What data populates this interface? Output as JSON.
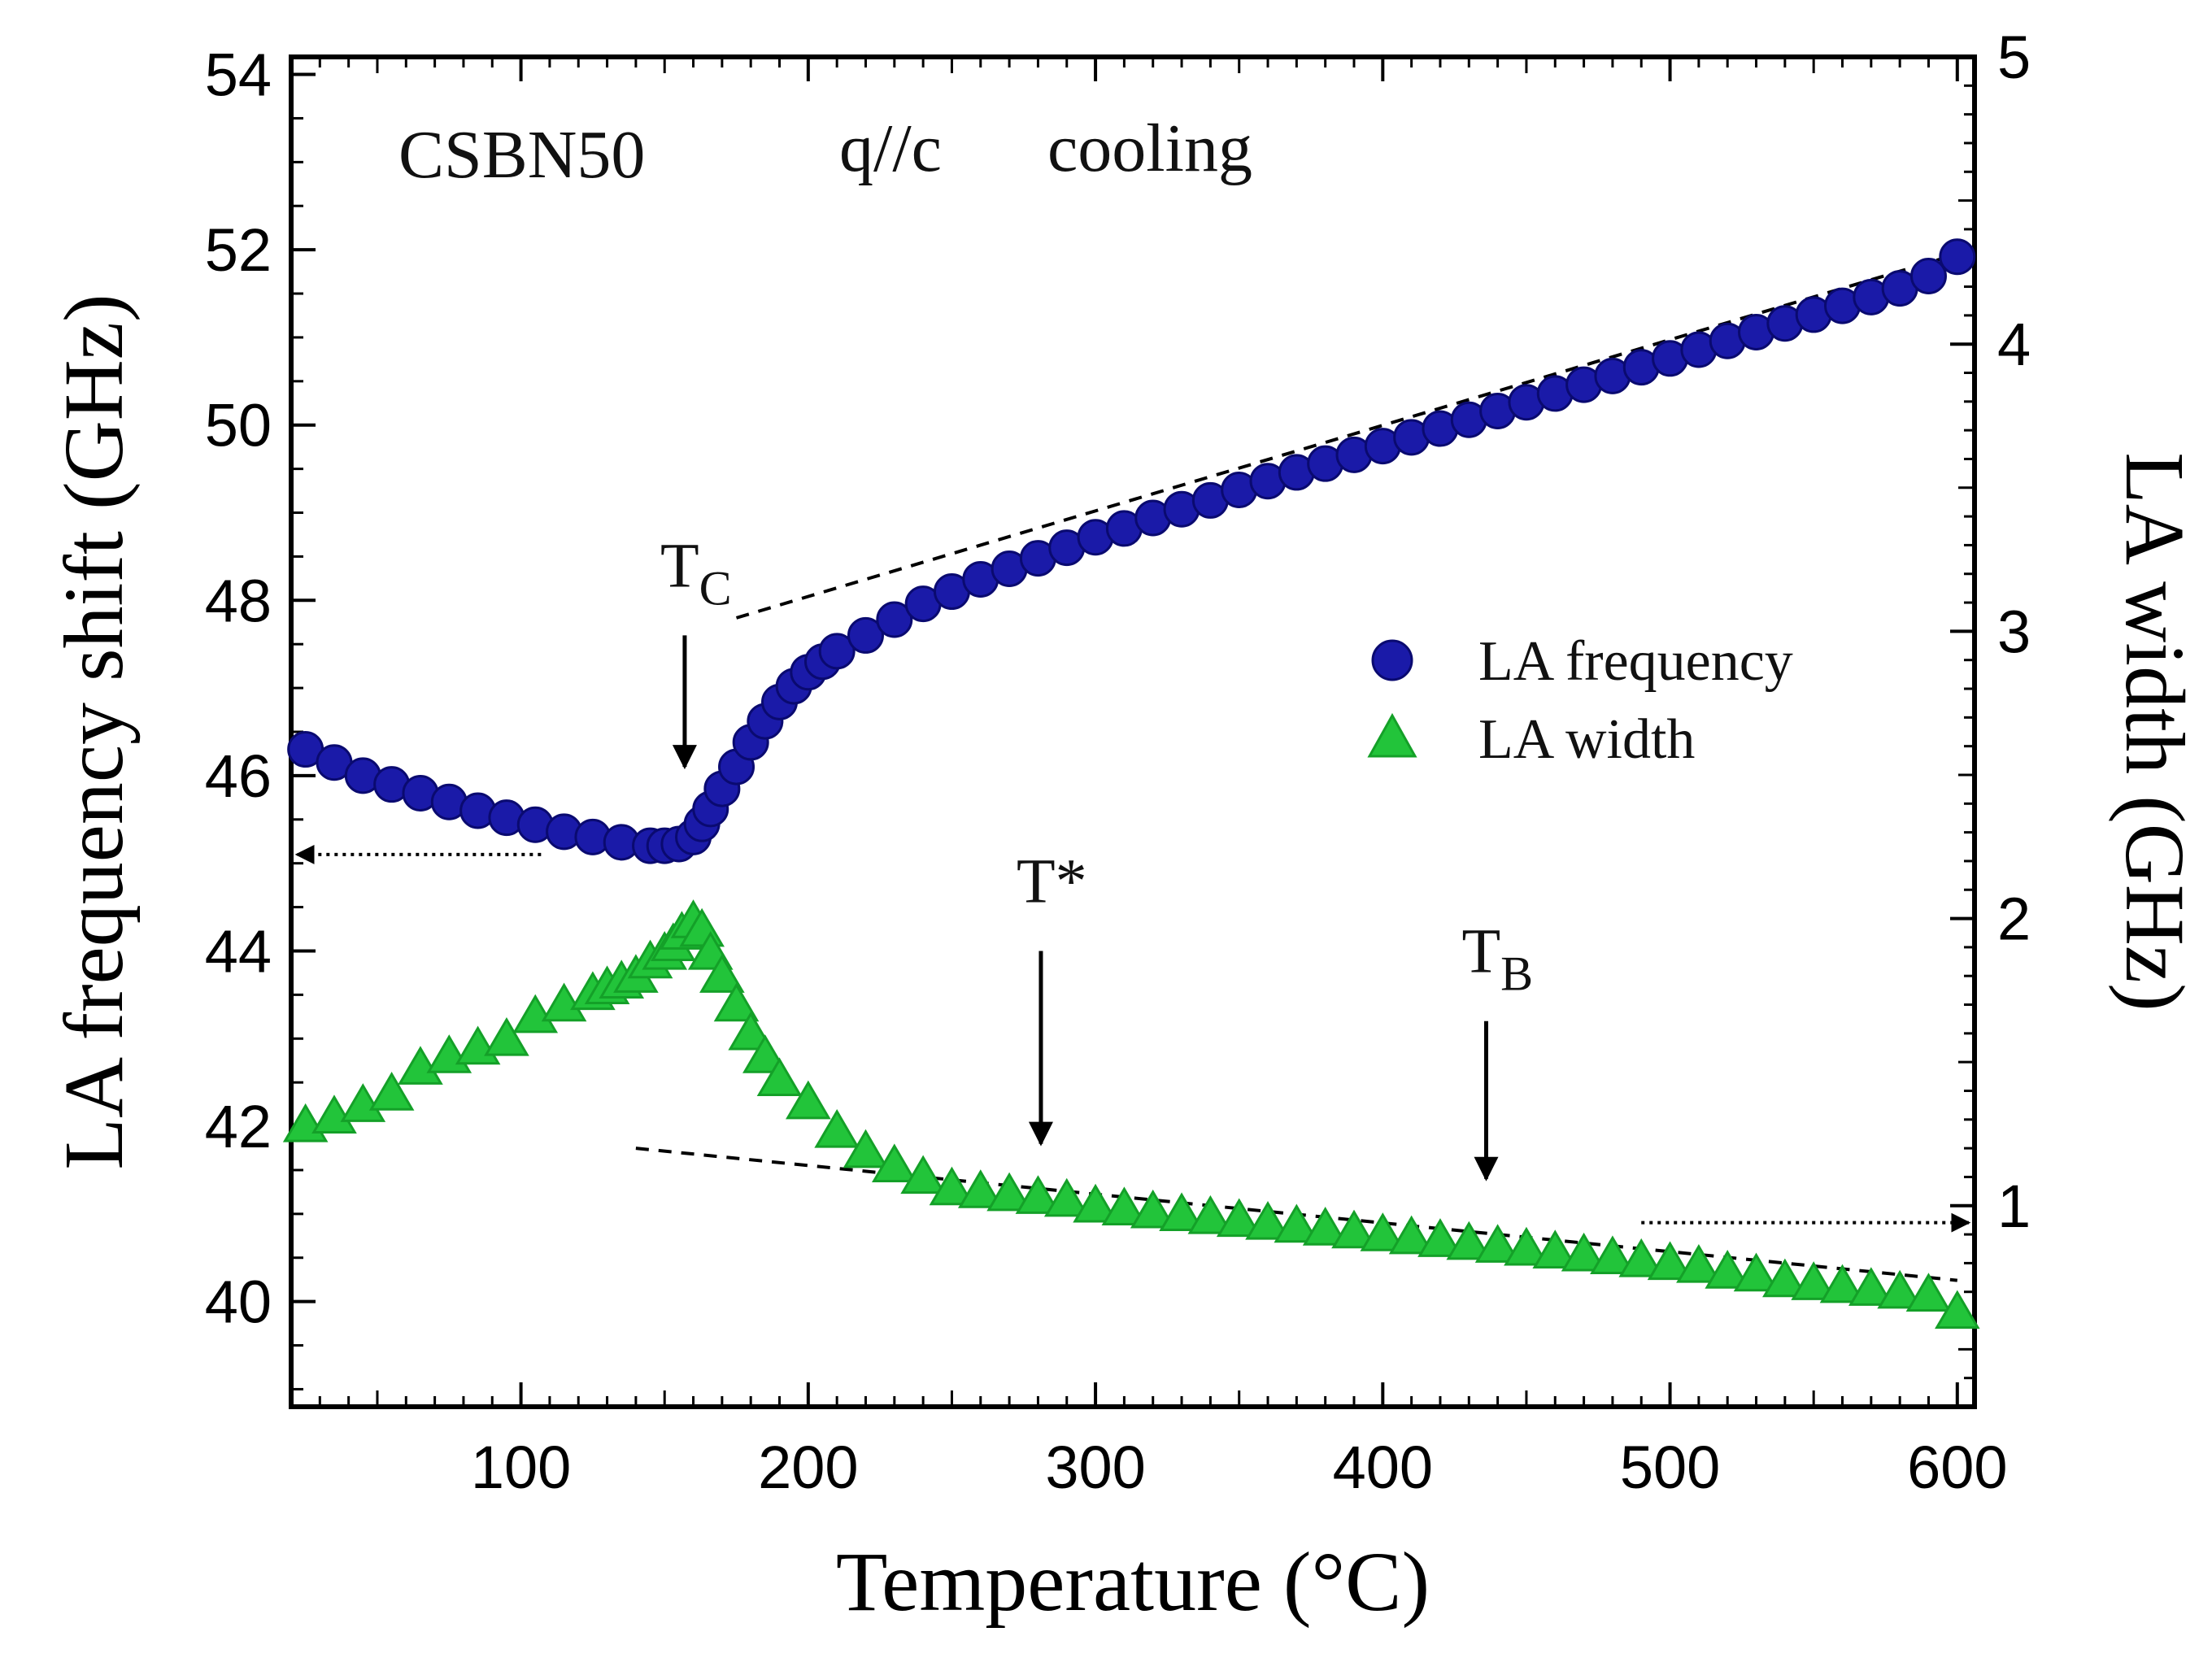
{
  "chart_data": {
    "type": "scatter",
    "header": {
      "sample": "CSBN50",
      "geometry": "q//c",
      "process": "cooling"
    },
    "xlabel": "Temperature (°C)",
    "ylabel_left": "LA frequency shift (GHz)",
    "ylabel_right": "LA width (GHz)",
    "xlim": [
      20,
      606
    ],
    "ylim_left": [
      38.8,
      54.2
    ],
    "ylim_right": [
      0.3,
      5.0
    ],
    "x_ticks": [
      100,
      200,
      300,
      400,
      500,
      600
    ],
    "y_left_ticks": [
      40,
      42,
      44,
      46,
      48,
      50,
      52,
      54
    ],
    "y_right_ticks": [
      1,
      2,
      3,
      4,
      5
    ],
    "grid": false,
    "legend": {
      "placement": "right-middle",
      "entries": [
        "LA frequency",
        "LA width"
      ]
    },
    "colors": {
      "frequency": "#1a1aa8",
      "width": "#22c43a",
      "frequency_edge": "#0a0a70",
      "width_edge": "#14a028"
    },
    "series": [
      {
        "name": "LA frequency",
        "axis": "left",
        "marker": "circle",
        "x": [
          25,
          35,
          45,
          55,
          65,
          75,
          85,
          95,
          105,
          115,
          125,
          135,
          145,
          150,
          155,
          160,
          163,
          166,
          170,
          175,
          180,
          185,
          190,
          195,
          200,
          205,
          210,
          220,
          230,
          240,
          250,
          260,
          270,
          280,
          290,
          300,
          310,
          320,
          330,
          340,
          350,
          360,
          370,
          380,
          390,
          400,
          410,
          420,
          430,
          440,
          450,
          460,
          470,
          480,
          490,
          500,
          510,
          520,
          530,
          540,
          550,
          560,
          570,
          580,
          590,
          600
        ],
        "y": [
          46.3,
          46.15,
          46.0,
          45.9,
          45.8,
          45.7,
          45.6,
          45.52,
          45.44,
          45.36,
          45.3,
          45.24,
          45.2,
          45.2,
          45.22,
          45.3,
          45.45,
          45.62,
          45.85,
          46.1,
          46.38,
          46.62,
          46.84,
          47.02,
          47.18,
          47.3,
          47.42,
          47.6,
          47.78,
          47.96,
          48.1,
          48.24,
          48.36,
          48.48,
          48.6,
          48.72,
          48.82,
          48.94,
          49.04,
          49.14,
          49.26,
          49.36,
          49.46,
          49.56,
          49.66,
          49.76,
          49.86,
          49.96,
          50.06,
          50.16,
          50.26,
          50.36,
          50.46,
          50.56,
          50.66,
          50.76,
          50.86,
          50.96,
          51.06,
          51.16,
          51.26,
          51.36,
          51.46,
          51.56,
          51.7,
          51.92
        ]
      },
      {
        "name": "LA width",
        "axis": "right",
        "marker": "triangle",
        "x": [
          25,
          35,
          45,
          55,
          65,
          75,
          85,
          95,
          105,
          115,
          125,
          130,
          135,
          140,
          145,
          150,
          153,
          156,
          160,
          163,
          166,
          170,
          175,
          180,
          185,
          190,
          200,
          210,
          220,
          230,
          240,
          250,
          260,
          270,
          280,
          290,
          300,
          310,
          320,
          330,
          340,
          350,
          360,
          370,
          380,
          390,
          400,
          410,
          420,
          430,
          440,
          450,
          460,
          470,
          480,
          490,
          500,
          510,
          520,
          530,
          540,
          550,
          560,
          570,
          580,
          590,
          600
        ],
        "y": [
          1.28,
          1.31,
          1.35,
          1.39,
          1.48,
          1.52,
          1.55,
          1.58,
          1.66,
          1.7,
          1.74,
          1.76,
          1.78,
          1.8,
          1.85,
          1.88,
          1.91,
          1.95,
          1.99,
          1.96,
          1.88,
          1.8,
          1.7,
          1.6,
          1.52,
          1.44,
          1.36,
          1.26,
          1.19,
          1.14,
          1.1,
          1.06,
          1.05,
          1.04,
          1.03,
          1.02,
          1.0,
          0.99,
          0.98,
          0.97,
          0.96,
          0.95,
          0.94,
          0.93,
          0.92,
          0.91,
          0.9,
          0.89,
          0.88,
          0.87,
          0.86,
          0.85,
          0.84,
          0.83,
          0.82,
          0.81,
          0.8,
          0.79,
          0.77,
          0.76,
          0.74,
          0.73,
          0.72,
          0.71,
          0.7,
          0.69,
          0.63
        ]
      }
    ],
    "guides": [
      {
        "name": "frequency-baseline",
        "axis": "left",
        "x": [
          175,
          600
        ],
        "y": [
          47.8,
          51.95
        ]
      },
      {
        "name": "width-baseline",
        "axis": "right",
        "x": [
          140,
          600
        ],
        "y": [
          1.2,
          0.74
        ]
      }
    ],
    "annotations": [
      {
        "name": "tc",
        "main": "T",
        "sub": "C",
        "x": 157,
        "axis": "left",
        "from": 47.6,
        "to": 46.1
      },
      {
        "name": "tstar",
        "main": "T*",
        "sub": "",
        "x": 281,
        "axis": "left",
        "from": 44.0,
        "to": 41.8
      },
      {
        "name": "tb",
        "main": "T",
        "sub": "B",
        "x": 436,
        "axis": "left",
        "from": 43.2,
        "to": 41.4
      }
    ],
    "axis_arrows": [
      {
        "name": "left-axis-arrow",
        "points_to": "left",
        "axis": "left",
        "y": 45.1,
        "x_from": 107,
        "x_to": 22
      },
      {
        "name": "right-axis-arrow",
        "points_to": "right",
        "axis": "left",
        "y": 40.9,
        "x_from": 490,
        "x_to": 604
      }
    ]
  }
}
